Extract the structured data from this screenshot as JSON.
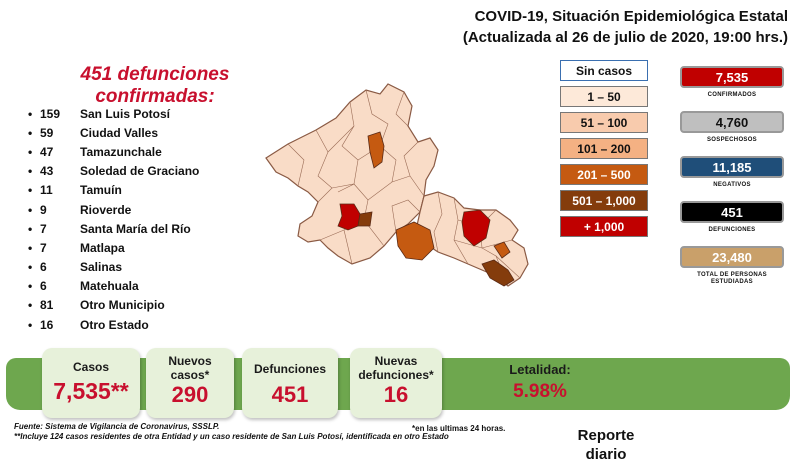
{
  "header": {
    "line1": "COVID-19, Situación Epidemiológica Estatal",
    "line2": "(Actualizada al 26 de julio de 2020, 19:00 hrs.)"
  },
  "headline": "451 defunciones confirmadas:",
  "municipalities": [
    {
      "bullet": "•",
      "count": "159",
      "name": "San Luis Potosí"
    },
    {
      "bullet": "•",
      "count": "59",
      "name": "Ciudad Valles"
    },
    {
      "bullet": "•",
      "count": "47",
      "name": "Tamazunchale"
    },
    {
      "bullet": "•",
      "count": "43",
      "name": "Soledad de Graciano"
    },
    {
      "bullet": "•",
      "count": "11",
      "name": "Tamuín"
    },
    {
      "bullet": "•",
      "count": "9",
      "name": "Rioverde"
    },
    {
      "bullet": "•",
      "count": "7",
      "name": "Santa María del Río"
    },
    {
      "bullet": "•",
      "count": "7",
      "name": "Matlapa"
    },
    {
      "bullet": "•",
      "count": "6",
      "name": "Salinas"
    },
    {
      "bullet": "•",
      "count": "6",
      "name": "Matehuala"
    },
    {
      "bullet": "•",
      "count": "81",
      "name": "Otro Municipio"
    },
    {
      "bullet": "•",
      "count": "16",
      "name": "Otro Estado"
    }
  ],
  "legend": [
    {
      "label": "Sin casos",
      "bg": "#ffffff",
      "fg": "#111111",
      "border": "#3a6fb0"
    },
    {
      "label": "1 – 50",
      "bg": "#fde9d9",
      "fg": "#111111",
      "border": "#777777"
    },
    {
      "label": "51 – 100",
      "bg": "#f8cbad",
      "fg": "#111111",
      "border": "#777777"
    },
    {
      "label": "101 – 200",
      "bg": "#f4b183",
      "fg": "#111111",
      "border": "#777777"
    },
    {
      "label": "201 – 500",
      "bg": "#c55a11",
      "fg": "#ffffff",
      "border": "#777777"
    },
    {
      "label": "501 – 1,000",
      "bg": "#843c0c",
      "fg": "#ffffff",
      "border": "#777777"
    },
    {
      "label": "+ 1,000",
      "bg": "#c00000",
      "fg": "#ffffff",
      "border": "#777777"
    }
  ],
  "stats": [
    {
      "value": "7,535",
      "label": "CONFIRMADOS",
      "bg": "#c00000",
      "fg": "#ffffff"
    },
    {
      "value": "4,760",
      "label": "SOSPECHOSOS",
      "bg": "#bfbfbf",
      "fg": "#111111"
    },
    {
      "value": "11,185",
      "label": "NEGATIVOS",
      "bg": "#1f4e79",
      "fg": "#ffffff"
    },
    {
      "value": "451",
      "label": "DEFUNCIONES",
      "bg": "#000000",
      "fg": "#ffffff"
    },
    {
      "value": "23,480",
      "label": "TOTAL DE PERSONAS ESTUDIADAS",
      "bg": "#c9a06a",
      "fg": "#ffffff"
    }
  ],
  "summary": {
    "casos": {
      "label": "Casos",
      "value": "7,535**"
    },
    "nuevos_casos": {
      "label": "Nuevos casos*",
      "value": "290"
    },
    "defunciones": {
      "label": "Defunciones",
      "value": "451"
    },
    "nuevas_defunciones": {
      "label": "Nuevas defunciones*",
      "value": "16"
    },
    "letalidad": {
      "label": "Letalidad:",
      "value": "5.98%"
    }
  },
  "footer": {
    "fuente": "Fuente: Sistema de Vigilancia de Coronavirus, SSSLP.",
    "note_24h": "*en las ultimas 24 horas.",
    "note_incluye": "**Incluye 124 casos residentes de otra Entidad y un caso residente de San Luis Potosí, identificada en otro Estado",
    "reporte": "Reporte diario"
  },
  "colors": {
    "accent_red": "#c8102e",
    "band_green": "#6ea74e",
    "card_green": "#e7f1da"
  }
}
